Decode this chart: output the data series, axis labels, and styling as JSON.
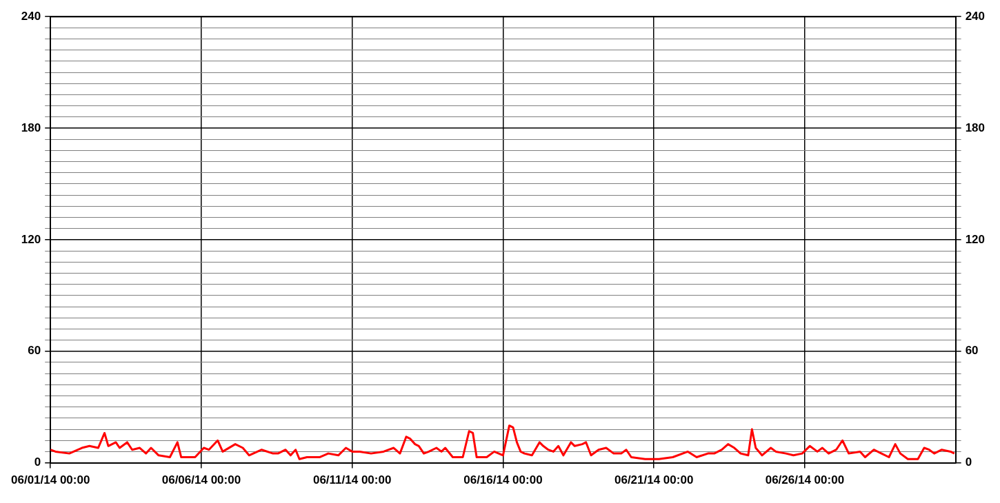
{
  "chart_data": {
    "type": "line",
    "xlim": [
      "--06-01T00:00",
      "--07-01T00:00"
    ],
    "xticks": [
      {
        "value": "--06-01T00:00",
        "label": "06/01/14 00:00"
      },
      {
        "value": "--06-06T00:00",
        "label": "06/06/14 00:00"
      },
      {
        "value": "--06-11T00:00",
        "label": "06/11/14 00:00"
      },
      {
        "value": "--06-16T00:00",
        "label": "06/16/14 00:00"
      },
      {
        "value": "--06-21T00:00",
        "label": "06/21/14 00:00"
      },
      {
        "value": "--06-26T00:00",
        "label": "06/26/14 00:00"
      }
    ],
    "ylim": [
      0,
      240
    ],
    "yticks": [
      0,
      {
        "value": 6,
        "label": null
      },
      {
        "value": 12,
        "label": null
      },
      {
        "value": 18,
        "label": null
      },
      {
        "value": 24,
        "label": null
      },
      {
        "value": 30,
        "label": null
      },
      {
        "value": 36,
        "label": null
      },
      {
        "value": 42,
        "label": null
      },
      {
        "value": 48,
        "label": null
      },
      {
        "value": 54,
        "label": null
      },
      60,
      {
        "value": 66,
        "label": null
      },
      {
        "value": 72,
        "label": null
      },
      {
        "value": 78,
        "label": null
      },
      {
        "value": 84,
        "label": null
      },
      {
        "value": 90,
        "label": null
      },
      {
        "value": 96,
        "label": null
      },
      {
        "value": 102,
        "label": null
      },
      {
        "value": 108,
        "label": null
      },
      {
        "value": 114,
        "label": null
      },
      120,
      {
        "value": 126,
        "label": null
      },
      {
        "value": 132,
        "label": null
      },
      {
        "value": 138,
        "label": null
      },
      {
        "value": 144,
        "label": null
      },
      {
        "value": 150,
        "label": null
      },
      {
        "value": 156,
        "label": null
      },
      {
        "value": 162,
        "label": null
      },
      {
        "value": 168,
        "label": null
      },
      {
        "value": 174,
        "label": null
      },
      180,
      {
        "value": 186,
        "label": null
      },
      {
        "value": 192,
        "label": null
      },
      {
        "value": 198,
        "label": null
      },
      {
        "value": 204,
        "label": null
      },
      {
        "value": 210,
        "label": null
      },
      {
        "value": 216,
        "label": null
      },
      {
        "value": 222,
        "label": null
      },
      {
        "value": 228,
        "label": null
      },
      {
        "value": 234,
        "label": null
      },
      240
    ],
    "y2lim": [
      0,
      240
    ],
    "y2ticks": [
      0,
      {
        "value": 6,
        "label": null
      },
      {
        "value": 12,
        "label": null
      },
      {
        "value": 18,
        "label": null
      },
      {
        "value": 24,
        "label": null
      },
      {
        "value": 30,
        "label": null
      },
      {
        "value": 36,
        "label": null
      },
      {
        "value": 42,
        "label": null
      },
      {
        "value": 48,
        "label": null
      },
      {
        "value": 54,
        "label": null
      },
      60,
      {
        "value": 66,
        "label": null
      },
      {
        "value": 72,
        "label": null
      },
      {
        "value": 78,
        "label": null
      },
      {
        "value": 84,
        "label": null
      },
      {
        "value": 90,
        "label": null
      },
      {
        "value": 96,
        "label": null
      },
      {
        "value": 102,
        "label": null
      },
      {
        "value": 108,
        "label": null
      },
      {
        "value": 114,
        "label": null
      },
      120,
      {
        "value": 126,
        "label": null
      },
      {
        "value": 132,
        "label": null
      },
      {
        "value": 138,
        "label": null
      },
      {
        "value": 144,
        "label": null
      },
      {
        "value": 150,
        "label": null
      },
      {
        "value": 156,
        "label": null
      },
      {
        "value": 162,
        "label": null
      },
      {
        "value": 168,
        "label": null
      },
      {
        "value": 174,
        "label": null
      },
      180,
      {
        "value": 186,
        "label": null
      },
      {
        "value": 192,
        "label": null
      },
      {
        "value": 198,
        "label": null
      },
      {
        "value": 204,
        "label": null
      },
      {
        "value": 210,
        "label": null
      },
      {
        "value": 216,
        "label": null
      },
      {
        "value": 222,
        "label": null
      },
      {
        "value": 228,
        "label": null
      },
      {
        "value": 234,
        "label": null
      },
      240
    ],
    "grid": true,
    "legend": false,
    "marker": "none",
    "line_style": "solid",
    "series": [
      {
        "color": "#ff0000",
        "x": [
          "--06-01T00:00",
          "--06-01T04:00",
          "--06-01T15:00",
          "--06-02T01:00",
          "--06-02T07:00",
          "--06-02T14:00",
          "--06-02T19:00",
          "--06-02T22:00",
          "--06-03T04:00",
          "--06-03T07:00",
          "--06-03T13:00",
          "--06-03T17:00",
          "--06-03T23:00",
          "--06-04T04:00",
          "--06-04T08:00",
          "--06-04T14:00",
          "--06-04T23:00",
          "--06-05T05:00",
          "--06-05T08:00",
          "--06-05T19:00",
          "--06-06T02:00",
          "--06-06T06:00",
          "--06-06T13:00",
          "--06-06T17:00",
          "--06-07T03:00",
          "--06-07T09:00",
          "--06-07T14:00",
          "--06-08T00:00",
          "--06-08T09:00",
          "--06-08T13:00",
          "--06-08T19:00",
          "--06-08T23:00",
          "--06-09T03:00",
          "--06-09T06:00",
          "--06-09T12:00",
          "--06-09T22:00",
          "--06-10T05:00",
          "--06-10T13:00",
          "--06-10T19:00",
          "--06-11T00:00",
          "--06-11T06:00",
          "--06-11T15:00",
          "--06-12T01:00",
          "--06-12T09:00",
          "--06-12T14:00",
          "--06-12T19:00",
          "--06-12T22:00",
          "--06-13T02:00",
          "--06-13T05:00",
          "--06-13T09:00",
          "--06-13T13:00",
          "--06-13T19:00",
          "--06-13T23:00",
          "--06-14T02:00",
          "--06-14T08:00",
          "--06-14T16:00",
          "--06-14T21:00",
          "--06-15T00:00",
          "--06-15T03:00",
          "--06-15T11:00",
          "--06-15T17:00",
          "--06-16T00:00",
          "--06-16T05:00",
          "--06-16T08:00",
          "--06-16T11:00",
          "--06-16T14:00",
          "--06-16T17:00",
          "--06-16T23:00",
          "--06-17T05:00",
          "--06-17T08:00",
          "--06-17T12:00",
          "--06-17T16:00",
          "--06-17T20:00",
          "--06-18T00:00",
          "--06-18T06:00",
          "--06-18T09:00",
          "--06-18T15:00",
          "--06-18T18:00",
          "--06-18T22:00",
          "--06-19T04:00",
          "--06-19T10:00",
          "--06-19T16:00",
          "--06-19T22:00",
          "--06-20T02:00",
          "--06-20T06:00",
          "--06-20T17:00",
          "--06-21T04:00",
          "--06-21T15:00",
          "--06-22T03:00",
          "--06-22T10:00",
          "--06-22T19:00",
          "--06-23T00:00",
          "--06-23T06:00",
          "--06-23T11:00",
          "--06-23T16:00",
          "--06-23T21:00",
          "--06-24T03:00",
          "--06-24T06:00",
          "--06-24T09:00",
          "--06-24T14:00",
          "--06-24T21:00",
          "--06-25T01:00",
          "--06-25T09:00",
          "--06-25T15:00",
          "--06-25T22:00",
          "--06-26T04:00",
          "--06-26T10:00",
          "--06-26T14:00",
          "--06-26T19:00",
          "--06-27T01:00",
          "--06-27T06:00",
          "--06-27T11:00",
          "--06-27T20:00",
          "--06-28T00:00",
          "--06-28T07:00",
          "--06-28T13:00",
          "--06-28T19:00",
          "--06-29T00:00",
          "--06-29T04:00",
          "--06-29T10:00",
          "--06-29T18:00",
          "--06-29T23:00",
          "--06-30T03:00",
          "--06-30T07:00",
          "--06-30T13:00",
          "--06-30T20:00",
          "--06-30T23:00"
        ],
        "values": [
          7,
          6,
          5,
          8,
          9,
          8,
          16,
          9,
          11,
          8,
          11,
          7,
          8,
          5,
          8,
          4,
          3,
          11,
          3,
          3,
          8,
          7,
          12,
          6,
          10,
          8,
          4,
          7,
          5,
          5,
          7,
          4,
          7,
          2,
          3,
          3,
          5,
          4,
          8,
          6,
          6,
          5,
          6,
          8,
          5,
          14,
          13,
          10,
          9,
          5,
          6,
          8,
          6,
          8,
          3,
          3,
          17,
          16,
          3,
          3,
          6,
          4,
          20,
          19,
          11,
          6,
          5,
          4,
          11,
          9,
          7,
          6,
          9,
          4,
          11,
          9,
          10,
          11,
          4,
          7,
          8,
          5,
          5,
          7,
          3,
          2,
          2,
          3,
          6,
          3,
          5,
          5,
          7,
          10,
          8,
          5,
          4,
          18,
          8,
          4,
          8,
          6,
          5,
          4,
          5,
          9,
          6,
          8,
          5,
          7,
          12,
          5,
          6,
          3,
          7,
          5,
          3,
          10,
          5,
          2,
          2,
          8,
          7,
          5,
          7,
          6,
          5
        ]
      }
    ]
  }
}
